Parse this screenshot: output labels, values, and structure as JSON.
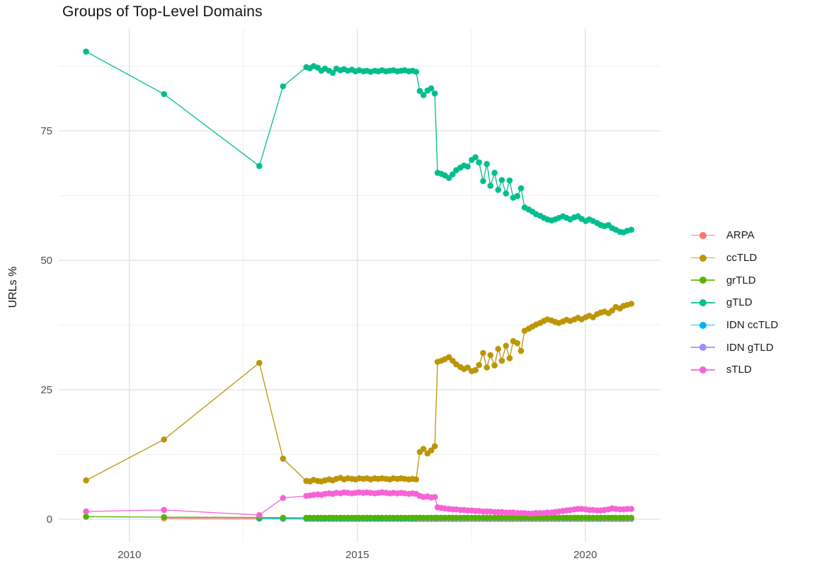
{
  "chart_data": {
    "type": "line",
    "title": "Groups of Top-Level Domains",
    "xlabel": "",
    "ylabel": "URLs %",
    "grid": "on",
    "legend_position": "right",
    "xlim": [
      2008.45,
      2021.65
    ],
    "ylim": [
      -4.5,
      94.8
    ],
    "x_ticks": [
      2010,
      2015,
      2020
    ],
    "x_minor_ticks": [
      2012.5,
      2017.5
    ],
    "y_ticks": [
      0,
      25,
      50,
      75
    ],
    "y_minor_ticks": [
      12.5,
      37.5,
      62.5,
      87.5
    ],
    "x": [
      2009.05,
      2010.76,
      2012.85,
      2013.37,
      2013.88,
      2013.96,
      2014.04,
      2014.13,
      2014.21,
      2014.29,
      2014.38,
      2014.46,
      2014.54,
      2014.63,
      2014.71,
      2014.79,
      2014.88,
      2014.96,
      2015.04,
      2015.13,
      2015.21,
      2015.29,
      2015.38,
      2015.46,
      2015.54,
      2015.63,
      2015.71,
      2015.79,
      2015.88,
      2015.96,
      2016.04,
      2016.13,
      2016.21,
      2016.29,
      2016.37,
      2016.45,
      2016.54,
      2016.62,
      2016.7,
      2016.76,
      2016.84,
      2016.92,
      2017.01,
      2017.09,
      2017.17,
      2017.26,
      2017.34,
      2017.42,
      2017.51,
      2017.59,
      2017.67,
      2017.76,
      2017.84,
      2017.92,
      2018.01,
      2018.09,
      2018.17,
      2018.26,
      2018.34,
      2018.42,
      2018.51,
      2018.59,
      2018.67,
      2018.76,
      2018.84,
      2018.92,
      2019.01,
      2019.09,
      2019.17,
      2019.26,
      2019.34,
      2019.42,
      2019.51,
      2019.59,
      2019.67,
      2019.76,
      2019.84,
      2019.92,
      2020.01,
      2020.09,
      2020.17,
      2020.26,
      2020.34,
      2020.42,
      2020.51,
      2020.59,
      2020.67,
      2020.76,
      2020.84,
      2020.92,
      2021.01
    ],
    "series": [
      {
        "name": "ARPA",
        "color": "#F8766D",
        "values": [
          null,
          0.2,
          0.1,
          null,
          null,
          null,
          null,
          null,
          null,
          null,
          null,
          null,
          null,
          null,
          null,
          null,
          null,
          null,
          null,
          null,
          null,
          null,
          null,
          null,
          null,
          null,
          null,
          null,
          null,
          null,
          null,
          null,
          null,
          null,
          null,
          null,
          null,
          null,
          null,
          null,
          null,
          null,
          null,
          null,
          null,
          null,
          null,
          null,
          null,
          null,
          null,
          null,
          null,
          null,
          null,
          null,
          null,
          null,
          null,
          null,
          null,
          null,
          null,
          null,
          null,
          null,
          null,
          null,
          null,
          null,
          null,
          null,
          null,
          null,
          null,
          null,
          null,
          null,
          null,
          null,
          null,
          null,
          null,
          null,
          null,
          null,
          null,
          null,
          null,
          null,
          null
        ]
      },
      {
        "name": "ccTLD",
        "color": "#BC9606",
        "values": [
          7.5,
          15.4,
          30.2,
          11.7,
          7.4,
          7.3,
          7.6,
          7.4,
          7.3,
          7.5,
          7.7,
          7.5,
          7.8,
          8.0,
          7.7,
          7.9,
          7.8,
          7.7,
          7.9,
          7.8,
          7.9,
          7.7,
          7.9,
          7.8,
          7.9,
          7.8,
          7.7,
          7.9,
          7.8,
          7.9,
          7.8,
          7.7,
          7.8,
          7.7,
          13.0,
          13.6,
          12.7,
          13.3,
          14.1,
          30.4,
          30.6,
          30.9,
          31.3,
          30.6,
          29.9,
          29.4,
          29.0,
          29.3,
          28.6,
          28.8,
          29.8,
          32.1,
          29.3,
          31.7,
          29.7,
          32.9,
          30.6,
          33.5,
          31.1,
          34.4,
          34.0,
          32.5,
          36.4,
          36.8,
          37.2,
          37.6,
          37.9,
          38.3,
          38.6,
          38.4,
          38.1,
          37.9,
          38.2,
          38.5,
          38.3,
          38.6,
          38.9,
          38.6,
          39.0,
          39.3,
          39.0,
          39.6,
          39.9,
          40.1,
          39.8,
          40.3,
          41.0,
          40.7,
          41.2,
          41.4,
          41.6
        ]
      },
      {
        "name": "grTLD",
        "color": "#53B400",
        "values": [
          0.5,
          0.4,
          0.35,
          0.3,
          0.3,
          0.3,
          0.3,
          0.3,
          0.3,
          0.3,
          0.3,
          0.3,
          0.3,
          0.3,
          0.3,
          0.3,
          0.3,
          0.3,
          0.3,
          0.3,
          0.3,
          0.3,
          0.3,
          0.3,
          0.3,
          0.3,
          0.3,
          0.3,
          0.3,
          0.3,
          0.3,
          0.3,
          0.3,
          0.3,
          0.3,
          0.3,
          0.3,
          0.3,
          0.3,
          0.3,
          0.3,
          0.3,
          0.3,
          0.3,
          0.3,
          0.3,
          0.3,
          0.3,
          0.3,
          0.3,
          0.3,
          0.3,
          0.3,
          0.3,
          0.3,
          0.3,
          0.3,
          0.3,
          0.3,
          0.3,
          0.3,
          0.3,
          0.3,
          0.3,
          0.3,
          0.3,
          0.3,
          0.3,
          0.3,
          0.3,
          0.3,
          0.3,
          0.3,
          0.3,
          0.3,
          0.3,
          0.3,
          0.3,
          0.3,
          0.3,
          0.3,
          0.3,
          0.3,
          0.3,
          0.3,
          0.3,
          0.3,
          0.3,
          0.3,
          0.3,
          0.3
        ]
      },
      {
        "name": "gTLD",
        "color": "#00BE8D",
        "values": [
          90.3,
          82.1,
          68.2,
          83.6,
          87.3,
          87.1,
          87.5,
          87.2,
          86.6,
          87.0,
          86.6,
          86.2,
          87.0,
          86.7,
          86.9,
          86.6,
          86.8,
          86.5,
          86.7,
          86.5,
          86.6,
          86.4,
          86.6,
          86.5,
          86.7,
          86.5,
          86.6,
          86.7,
          86.5,
          86.6,
          86.7,
          86.5,
          86.6,
          86.4,
          82.7,
          81.9,
          82.8,
          83.2,
          82.2,
          66.9,
          66.7,
          66.4,
          65.9,
          66.6,
          67.4,
          67.9,
          68.3,
          68.1,
          69.4,
          69.9,
          68.9,
          65.3,
          68.6,
          64.4,
          66.9,
          63.6,
          65.5,
          62.9,
          65.4,
          62.1,
          62.4,
          63.9,
          60.2,
          59.8,
          59.4,
          58.9,
          58.6,
          58.2,
          57.9,
          57.7,
          57.9,
          58.2,
          58.5,
          58.2,
          57.9,
          58.3,
          58.5,
          58.0,
          57.6,
          57.9,
          57.6,
          57.2,
          56.8,
          56.6,
          56.8,
          56.2,
          55.9,
          55.5,
          55.4,
          55.7,
          55.9
        ]
      },
      {
        "name": "IDN ccTLD",
        "color": "#00B3EC",
        "values": [
          null,
          null,
          0.15,
          0.1,
          0.08,
          0.08,
          0.08,
          0.08,
          0.08,
          0.08,
          0.08,
          0.08,
          0.08,
          0.08,
          0.08,
          0.08,
          0.08,
          0.08,
          0.08,
          0.08,
          0.08,
          0.08,
          0.08,
          0.08,
          0.08,
          0.08,
          0.08,
          0.08,
          0.08,
          0.08,
          0.08,
          0.08,
          0.08,
          0.08,
          0.08,
          0.08,
          0.08,
          0.08,
          0.08,
          0.08,
          0.08,
          0.08,
          0.08,
          0.08,
          0.08,
          0.08,
          0.08,
          0.08,
          0.08,
          0.08,
          0.08,
          0.08,
          0.08,
          0.08,
          0.08,
          0.08,
          0.08,
          0.08,
          0.08,
          0.08,
          0.08,
          0.08,
          0.08,
          0.08,
          0.08,
          0.08,
          0.08,
          0.08,
          0.08,
          0.08,
          0.08,
          0.08,
          0.08,
          0.08,
          0.08,
          0.08,
          0.08,
          0.08,
          0.08,
          0.08,
          0.08,
          0.08,
          0.08,
          0.08,
          0.08,
          0.08,
          0.08,
          0.08,
          0.08,
          0.08,
          0.08
        ]
      },
      {
        "name": "IDN gTLD",
        "color": "#A58AFF",
        "values": [
          null,
          null,
          null,
          null,
          null,
          null,
          null,
          null,
          null,
          null,
          null,
          null,
          null,
          null,
          null,
          null,
          null,
          null,
          null,
          null,
          null,
          null,
          null,
          null,
          null,
          null,
          null,
          null,
          null,
          null,
          null,
          null,
          null,
          null,
          0.05,
          0.05,
          0.05,
          0.05,
          0.05,
          0.05,
          0.05,
          0.05,
          0.05,
          0.05,
          0.05,
          0.05,
          0.05,
          0.05,
          0.05,
          0.05,
          0.05,
          0.05,
          0.05,
          0.05,
          0.05,
          0.05,
          0.05,
          0.05,
          0.05,
          0.05,
          0.05,
          0.05,
          0.05,
          0.05,
          0.05,
          0.05,
          0.05,
          0.05,
          0.05,
          0.05,
          0.05,
          0.05,
          0.05,
          0.05,
          0.05,
          0.05,
          0.05,
          0.05,
          0.05,
          0.05,
          0.05,
          0.05,
          0.05,
          0.05,
          0.05,
          0.05,
          0.05,
          0.05,
          0.05,
          0.05,
          0.05
        ]
      },
      {
        "name": "sTLD",
        "color": "#F763D6",
        "values": [
          1.5,
          1.8,
          0.8,
          4.1,
          4.5,
          4.6,
          4.7,
          4.8,
          4.7,
          4.9,
          5.0,
          4.9,
          5.1,
          5.0,
          5.2,
          5.1,
          5.0,
          5.1,
          5.2,
          5.1,
          5.2,
          5.1,
          5.0,
          5.1,
          5.2,
          5.1,
          5.0,
          5.1,
          5.0,
          5.1,
          5.0,
          4.9,
          5.0,
          4.9,
          4.5,
          4.3,
          4.4,
          4.2,
          4.3,
          2.3,
          2.2,
          2.1,
          2.0,
          1.9,
          1.9,
          1.8,
          1.8,
          1.7,
          1.7,
          1.6,
          1.6,
          1.5,
          1.5,
          1.5,
          1.4,
          1.4,
          1.4,
          1.3,
          1.3,
          1.3,
          1.2,
          1.2,
          1.2,
          1.1,
          1.1,
          1.2,
          1.2,
          1.2,
          1.3,
          1.3,
          1.4,
          1.5,
          1.6,
          1.7,
          1.8,
          1.9,
          2.0,
          2.0,
          1.9,
          1.8,
          1.8,
          1.7,
          1.7,
          1.8,
          1.9,
          2.1,
          2.0,
          1.9,
          1.9,
          2.0,
          2.0
        ]
      }
    ],
    "style": {
      "grid_major_color": "#DEDEDE",
      "grid_minor_color": "#EFEFEF",
      "tick_label_color": "#4E4E4E",
      "title_color": "#141414"
    }
  }
}
